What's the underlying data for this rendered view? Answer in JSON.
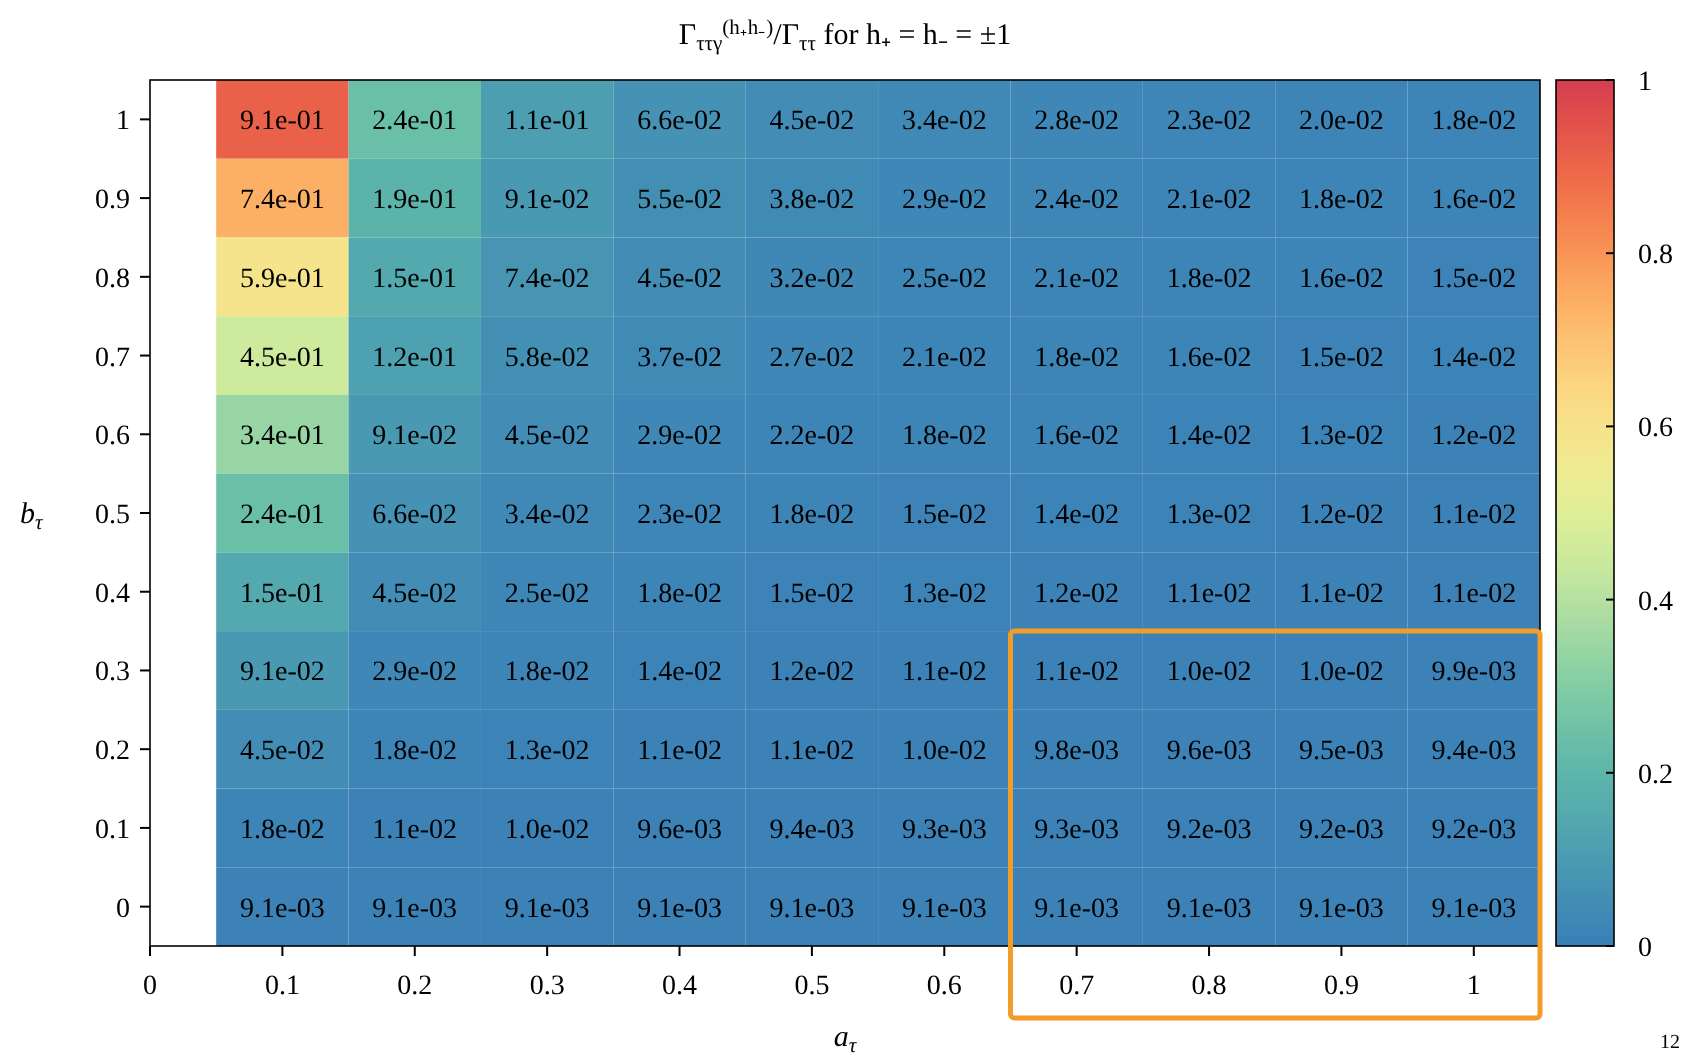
{
  "chart_data": {
    "type": "heatmap",
    "title": "Γ$_{ττγ}$$^{(h₊h₋)}$/Γ$_{ττ}$ for h₊ = h₋ = ±1",
    "xlabel": "a$_{τ}$",
    "ylabel": "b$_{τ}$",
    "x": [
      0.1,
      0.2,
      0.3,
      0.4,
      0.5,
      0.6,
      0.7,
      0.8,
      0.9,
      1
    ],
    "xlim": [
      0,
      1.05
    ],
    "xticks": [
      0,
      0.1,
      0.2,
      0.3,
      0.4,
      0.5,
      0.6,
      0.7,
      0.8,
      0.9,
      1
    ],
    "y_categories": [
      "1",
      "0.9",
      "0.8",
      "0.7",
      "0.6",
      "0.5",
      "0.4",
      "0.3",
      "0.2",
      "0.1",
      "0"
    ],
    "cells": [
      [
        0.91,
        0.24,
        0.11,
        0.066,
        0.045,
        0.034,
        0.028,
        0.023,
        0.02,
        0.018
      ],
      [
        0.74,
        0.19,
        0.091,
        0.055,
        0.038,
        0.029,
        0.024,
        0.021,
        0.018,
        0.016
      ],
      [
        0.59,
        0.15,
        0.074,
        0.045,
        0.032,
        0.025,
        0.021,
        0.018,
        0.016,
        0.015
      ],
      [
        0.45,
        0.12,
        0.058,
        0.037,
        0.027,
        0.021,
        0.018,
        0.016,
        0.015,
        0.014
      ],
      [
        0.34,
        0.091,
        0.045,
        0.029,
        0.022,
        0.018,
        0.016,
        0.014,
        0.013,
        0.012
      ],
      [
        0.24,
        0.066,
        0.034,
        0.023,
        0.018,
        0.015,
        0.014,
        0.013,
        0.012,
        0.011
      ],
      [
        0.15,
        0.045,
        0.025,
        0.018,
        0.015,
        0.013,
        0.012,
        0.011,
        0.011,
        0.011
      ],
      [
        0.091,
        0.029,
        0.018,
        0.014,
        0.012,
        0.011,
        0.011,
        0.01,
        0.01,
        0.0099
      ],
      [
        0.045,
        0.018,
        0.013,
        0.011,
        0.011,
        0.01,
        0.0098,
        0.0096,
        0.0095,
        0.0094
      ],
      [
        0.018,
        0.011,
        0.01,
        0.0096,
        0.0094,
        0.0093,
        0.0093,
        0.0092,
        0.0092,
        0.0092
      ],
      [
        0.0091,
        0.0091,
        0.0091,
        0.0091,
        0.0091,
        0.0091,
        0.0091,
        0.0091,
        0.0091,
        0.0091
      ]
    ],
    "cell_labels": [
      [
        "9.1e-01",
        "2.4e-01",
        "1.1e-01",
        "6.6e-02",
        "4.5e-02",
        "3.4e-02",
        "2.8e-02",
        "2.3e-02",
        "2.0e-02",
        "1.8e-02"
      ],
      [
        "7.4e-01",
        "1.9e-01",
        "9.1e-02",
        "5.5e-02",
        "3.8e-02",
        "2.9e-02",
        "2.4e-02",
        "2.1e-02",
        "1.8e-02",
        "1.6e-02"
      ],
      [
        "5.9e-01",
        "1.5e-01",
        "7.4e-02",
        "4.5e-02",
        "3.2e-02",
        "2.5e-02",
        "2.1e-02",
        "1.8e-02",
        "1.6e-02",
        "1.5e-02"
      ],
      [
        "4.5e-01",
        "1.2e-01",
        "5.8e-02",
        "3.7e-02",
        "2.7e-02",
        "2.1e-02",
        "1.8e-02",
        "1.6e-02",
        "1.5e-02",
        "1.4e-02"
      ],
      [
        "3.4e-01",
        "9.1e-02",
        "4.5e-02",
        "2.9e-02",
        "2.2e-02",
        "1.8e-02",
        "1.6e-02",
        "1.4e-02",
        "1.3e-02",
        "1.2e-02"
      ],
      [
        "2.4e-01",
        "6.6e-02",
        "3.4e-02",
        "2.3e-02",
        "1.8e-02",
        "1.5e-02",
        "1.4e-02",
        "1.3e-02",
        "1.2e-02",
        "1.1e-02"
      ],
      [
        "1.5e-01",
        "4.5e-02",
        "2.5e-02",
        "1.8e-02",
        "1.5e-02",
        "1.3e-02",
        "1.2e-02",
        "1.1e-02",
        "1.1e-02",
        "1.1e-02"
      ],
      [
        "9.1e-02",
        "2.9e-02",
        "1.8e-02",
        "1.4e-02",
        "1.2e-02",
        "1.1e-02",
        "1.1e-02",
        "1.0e-02",
        "1.0e-02",
        "9.9e-03"
      ],
      [
        "4.5e-02",
        "1.8e-02",
        "1.3e-02",
        "1.1e-02",
        "1.1e-02",
        "1.0e-02",
        "9.8e-03",
        "9.6e-03",
        "9.5e-03",
        "9.4e-03"
      ],
      [
        "1.8e-02",
        "1.1e-02",
        "1.0e-02",
        "9.6e-03",
        "9.4e-03",
        "9.3e-03",
        "9.3e-03",
        "9.2e-03",
        "9.2e-03",
        "9.2e-03"
      ],
      [
        "9.1e-03",
        "9.1e-03",
        "9.1e-03",
        "9.1e-03",
        "9.1e-03",
        "9.1e-03",
        "9.1e-03",
        "9.1e-03",
        "9.1e-03",
        "9.1e-03"
      ]
    ],
    "clim": [
      0,
      1
    ],
    "cticks": [
      0,
      0.2,
      0.4,
      0.6,
      0.8,
      1
    ],
    "annotations": [
      "12"
    ]
  }
}
